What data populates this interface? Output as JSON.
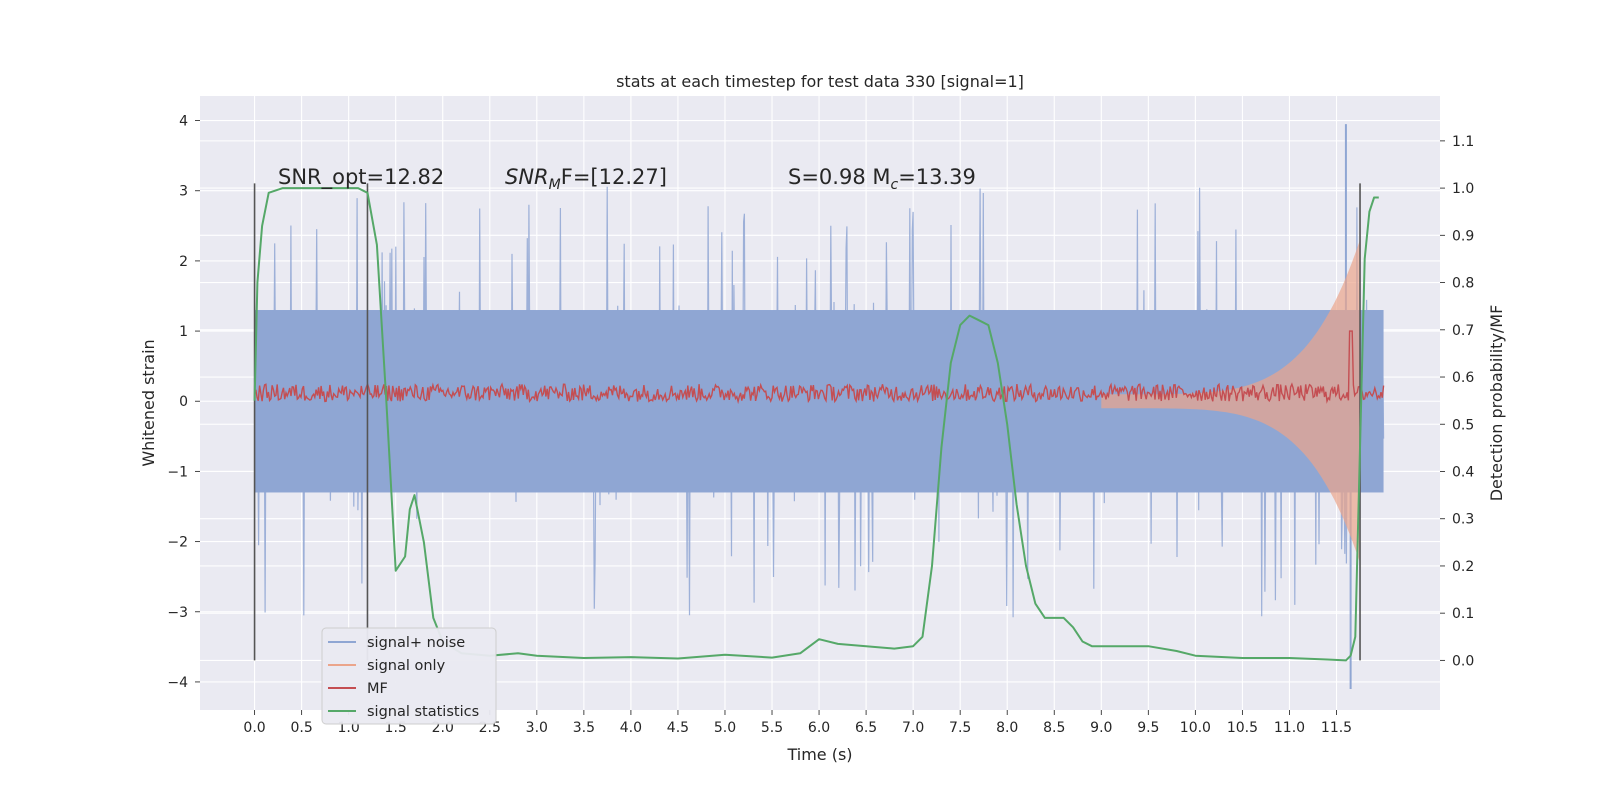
{
  "chart_data": {
    "type": "line",
    "title": "stats at each timestep for test data 330 [signal=1]",
    "xlabel": "Time (s)",
    "ylabel": "Whitened strain",
    "y2label": "Detection probability/MF",
    "xlim": [
      -0.58,
      12.6
    ],
    "ylim": [
      -4.4,
      4.35
    ],
    "y2lim": [
      -0.105,
      1.195
    ],
    "xticks": [
      "0.0",
      "0.5",
      "1.0",
      "1.5",
      "2.0",
      "2.5",
      "3.0",
      "3.5",
      "4.0",
      "4.5",
      "5.0",
      "5.5",
      "6.0",
      "6.5",
      "7.0",
      "7.5",
      "8.0",
      "8.5",
      "9.0",
      "9.5",
      "10.0",
      "10.5",
      "11.0",
      "11.5"
    ],
    "yticks": [
      "4",
      "3",
      "2",
      "1",
      "0",
      "−1",
      "−2",
      "−3",
      "−4"
    ],
    "y2ticks": [
      "1.1",
      "1.0",
      "0.9",
      "0.8",
      "0.7",
      "0.6",
      "0.5",
      "0.4",
      "0.3",
      "0.2",
      "0.1",
      "0.0"
    ],
    "grid": true,
    "legend_position": "lower-left",
    "annotations": [
      {
        "text": "SNR_opt=12.82"
      },
      {
        "text": "SNR",
        "sub": "M",
        "tail": "F=[12.27]",
        "italic": true
      },
      {
        "text": "S=0.98   M",
        "sub": "c",
        "tail": "=13.39"
      }
    ],
    "vlines_s": [
      0.0,
      1.2,
      11.75
    ],
    "series": [
      {
        "name": "signal+ noise",
        "color": "#8fa6d3",
        "t_range": [
          0.0,
          12.0
        ],
        "band_lo": -1.3,
        "band_hi": 1.3,
        "extreme_lo": -4.1,
        "extreme_hi": 3.95
      },
      {
        "name": "signal only",
        "color": "#eba58b",
        "t_range": [
          9.0,
          11.75
        ],
        "envelope_end": 2.3
      },
      {
        "name": "MF",
        "color": "#c44e52",
        "t_range": [
          0.0,
          12.0
        ],
        "mean": 0.12,
        "spike_t": 11.65,
        "spike_v": 1.0
      },
      {
        "name": "signal statistics",
        "color": "#55a868",
        "t": [
          0.0,
          0.03,
          0.08,
          0.15,
          0.3,
          0.6,
          0.9,
          1.0,
          1.1,
          1.2,
          1.3,
          1.4,
          1.5,
          1.6,
          1.65,
          1.7,
          1.8,
          1.9,
          2.0,
          2.2,
          2.5,
          2.8,
          3.0,
          3.5,
          4.0,
          4.5,
          5.0,
          5.5,
          5.8,
          6.0,
          6.2,
          6.5,
          6.8,
          7.0,
          7.1,
          7.2,
          7.3,
          7.4,
          7.5,
          7.6,
          7.7,
          7.8,
          7.9,
          8.0,
          8.1,
          8.2,
          8.3,
          8.4,
          8.5,
          8.6,
          8.7,
          8.8,
          8.9,
          9.0,
          9.5,
          9.8,
          10.0,
          10.5,
          11.0,
          11.4,
          11.6,
          11.65,
          11.7,
          11.75,
          11.8,
          11.85,
          11.9,
          11.95
        ],
        "v": [
          0.55,
          0.8,
          0.92,
          0.99,
          1.0,
          1.0,
          1.0,
          1.0,
          1.0,
          0.99,
          0.88,
          0.55,
          0.19,
          0.22,
          0.32,
          0.35,
          0.25,
          0.09,
          0.04,
          0.015,
          0.01,
          0.015,
          0.01,
          0.005,
          0.007,
          0.004,
          0.012,
          0.006,
          0.015,
          0.045,
          0.035,
          0.03,
          0.025,
          0.03,
          0.05,
          0.2,
          0.45,
          0.63,
          0.71,
          0.73,
          0.72,
          0.71,
          0.63,
          0.5,
          0.33,
          0.2,
          0.12,
          0.09,
          0.09,
          0.09,
          0.07,
          0.04,
          0.03,
          0.03,
          0.03,
          0.02,
          0.01,
          0.005,
          0.005,
          0.002,
          0.0,
          0.01,
          0.05,
          0.45,
          0.85,
          0.95,
          0.98,
          0.98
        ]
      }
    ]
  }
}
